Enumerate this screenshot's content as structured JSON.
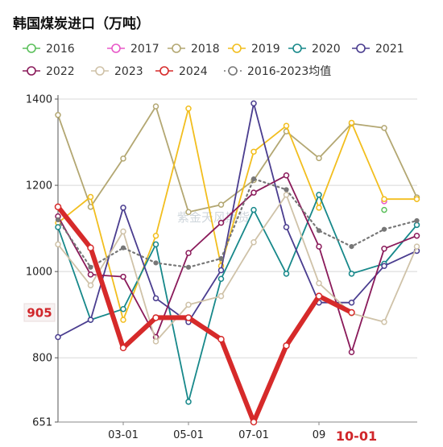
{
  "chart_data": {
    "type": "line",
    "title": "韩国煤炭进口（万吨）",
    "watermark": "紫金天风期货",
    "xlabel": "",
    "ylabel": "",
    "ylim": [
      651,
      1400
    ],
    "y_ticks": [
      1400,
      1200,
      1000,
      800,
      651
    ],
    "x_tick_labels": [
      {
        "month": 3,
        "label": "03-01"
      },
      {
        "month": 5,
        "label": "05-01"
      },
      {
        "month": 7,
        "label": "07-01"
      },
      {
        "month": 9,
        "label": "09"
      }
    ],
    "highlight_x": {
      "month": 10,
      "label": "10-01"
    },
    "highlight_y": {
      "value": 905,
      "label": "905"
    },
    "x_months": [
      1,
      2,
      3,
      4,
      5,
      6,
      7,
      8,
      9,
      10,
      11,
      12
    ],
    "grid": "horizontal",
    "legend_position": "top",
    "series": [
      {
        "name": "2016",
        "color": "#5cc05c",
        "dashed": false,
        "width": 1.8,
        "values": [
          null,
          null,
          null,
          null,
          null,
          null,
          null,
          null,
          null,
          null,
          1143,
          null
        ]
      },
      {
        "name": "2017",
        "color": "#e858c8",
        "dashed": false,
        "width": 1.8,
        "values": [
          null,
          null,
          null,
          null,
          null,
          null,
          null,
          null,
          null,
          null,
          1163,
          null
        ]
      },
      {
        "name": "2018",
        "color": "#b3a772",
        "dashed": false,
        "width": 1.8,
        "values": [
          1363,
          1150,
          1262,
          1383,
          1138,
          1155,
          1212,
          1325,
          1263,
          1343,
          1333,
          1172
        ]
      },
      {
        "name": "2019",
        "color": "#f2be1e",
        "dashed": false,
        "width": 1.8,
        "values": [
          1113,
          1173,
          888,
          1083,
          1378,
          1013,
          1278,
          1338,
          1148,
          1345,
          1168,
          1168
        ]
      },
      {
        "name": "2020",
        "color": "#17888a",
        "dashed": false,
        "width": 1.8,
        "values": [
          1103,
          888,
          913,
          1063,
          698,
          983,
          1143,
          995,
          1178,
          995,
          1018,
          1108
        ]
      },
      {
        "name": "2021",
        "color": "#4a3d8f",
        "dashed": false,
        "width": 1.8,
        "values": [
          848,
          888,
          1148,
          938,
          883,
          1003,
          1390,
          1103,
          928,
          928,
          1013,
          1048
        ]
      },
      {
        "name": "2022",
        "color": "#8a1a5a",
        "dashed": false,
        "width": 1.8,
        "values": [
          1128,
          993,
          988,
          848,
          1043,
          1113,
          1183,
          1223,
          1058,
          813,
          1053,
          1083
        ]
      },
      {
        "name": "2023",
        "color": "#cfc2a8",
        "dashed": false,
        "width": 1.8,
        "values": [
          1063,
          968,
          1093,
          838,
          923,
          943,
          1068,
          1178,
          973,
          903,
          883,
          1058
        ]
      },
      {
        "name": "2024",
        "color": "#d62a2a",
        "dashed": false,
        "width": 6,
        "values": [
          1150,
          1055,
          823,
          893,
          893,
          843,
          651,
          828,
          943,
          905,
          null,
          null
        ]
      },
      {
        "name": "2016-2023均值",
        "color": "#777777",
        "dashed": true,
        "width": 2.2,
        "values": [
          1120,
          1010,
          1055,
          1020,
          1010,
          1030,
          1215,
          1190,
          1095,
          1058,
          1098,
          1118
        ]
      }
    ]
  }
}
